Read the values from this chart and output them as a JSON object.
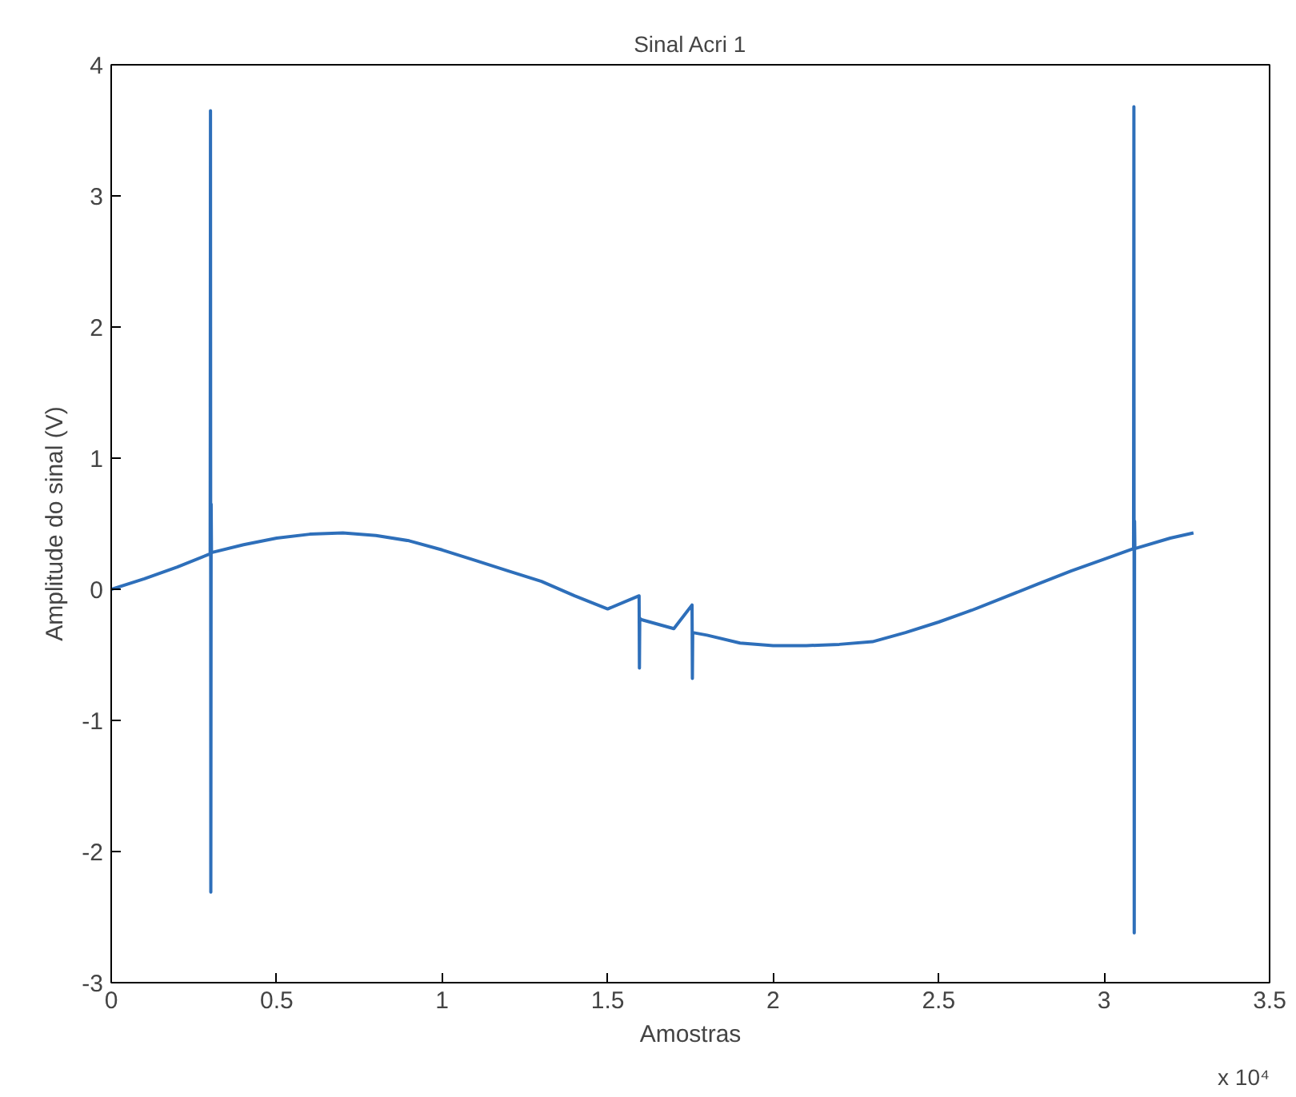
{
  "chart_data": {
    "type": "line",
    "title": "Sinal Acri 1",
    "xlabel": "Amostras",
    "ylabel": "Amplitude do sinal (V)",
    "annotations": [
      "x 10⁴"
    ],
    "x": [
      0,
      0.1,
      0.2,
      0.299,
      0.3,
      0.301,
      0.302,
      0.303,
      0.4,
      0.5,
      0.6,
      0.7,
      0.8,
      0.9,
      1.0,
      1.1,
      1.2,
      1.3,
      1.4,
      1.5,
      1.595,
      1.596,
      1.597,
      1.6,
      1.7,
      1.755,
      1.756,
      1.757,
      1.8,
      1.9,
      2.0,
      2.1,
      2.2,
      2.3,
      2.4,
      2.5,
      2.6,
      2.7,
      2.8,
      2.9,
      3.0,
      3.089,
      3.09,
      3.091,
      3.092,
      3.093,
      3.2,
      3.27
    ],
    "series": [
      {
        "color": "#2e6fba",
        "values": [
          0.0,
          0.08,
          0.17,
          0.27,
          3.65,
          -2.31,
          0.65,
          0.28,
          0.34,
          0.39,
          0.42,
          0.43,
          0.41,
          0.37,
          0.3,
          0.22,
          0.14,
          0.06,
          -0.05,
          -0.15,
          -0.05,
          -0.6,
          -0.22,
          -0.23,
          -0.3,
          -0.12,
          -0.68,
          -0.33,
          -0.35,
          -0.41,
          -0.43,
          -0.43,
          -0.42,
          -0.4,
          -0.33,
          -0.25,
          -0.16,
          -0.06,
          0.04,
          0.14,
          0.23,
          0.31,
          3.68,
          -2.62,
          0.52,
          0.31,
          0.39,
          0.43
        ]
      }
    ],
    "xlim": [
      0,
      3.5
    ],
    "ylim": [
      -3,
      4
    ],
    "xticks": [
      0,
      0.5,
      1,
      1.5,
      2,
      2.5,
      3,
      3.5
    ],
    "yticks": [
      -3,
      -2,
      -1,
      0,
      1,
      2,
      3,
      4
    ],
    "grid": false,
    "marker": "none",
    "line_style": "solid"
  }
}
